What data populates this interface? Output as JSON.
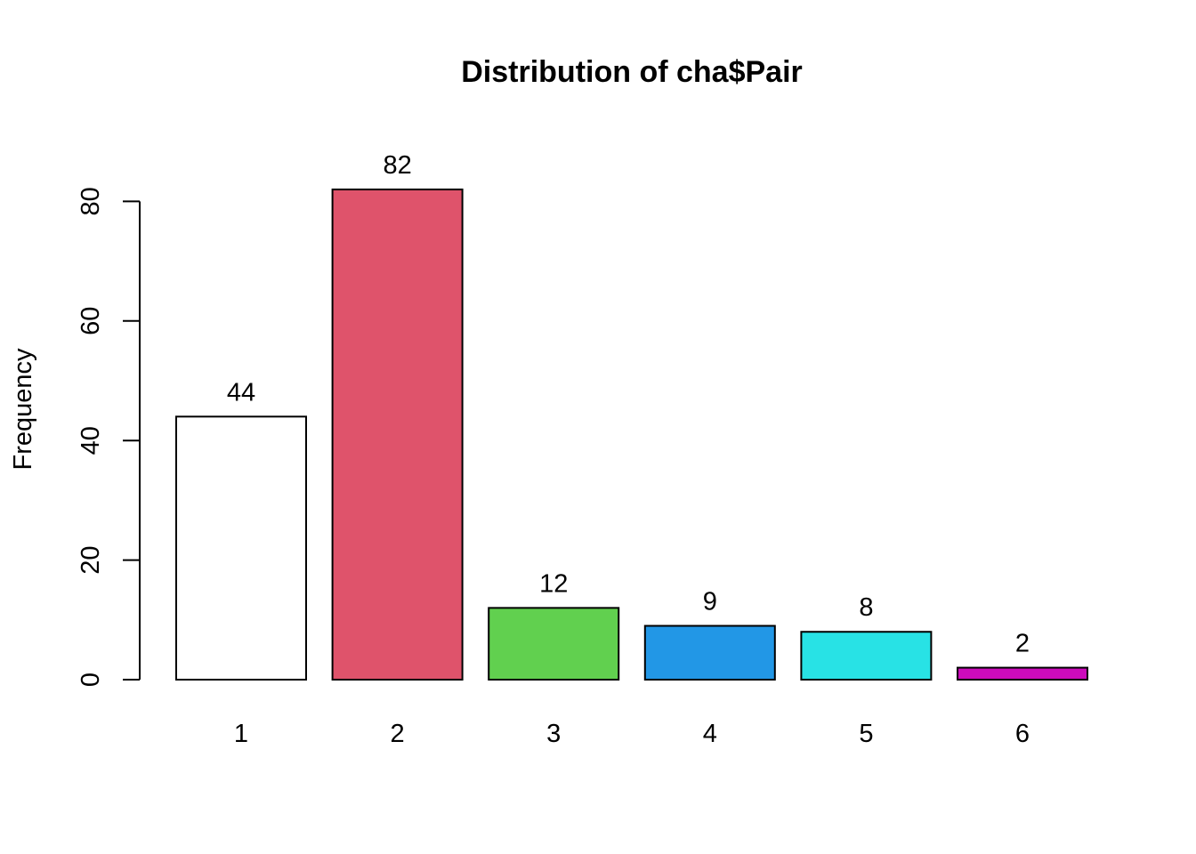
{
  "chart_data": {
    "type": "bar",
    "title": "Distribution of cha$Pair",
    "xlabel": "",
    "ylabel": "Frequency",
    "categories": [
      "1",
      "2",
      "3",
      "4",
      "5",
      "6"
    ],
    "values": [
      44,
      82,
      12,
      9,
      8,
      2
    ],
    "data_labels": [
      "44",
      "82",
      "12",
      "9",
      "8",
      "2"
    ],
    "colors": [
      "#FFFFFF",
      "#DF536B",
      "#61D04F",
      "#2297E6",
      "#28E2E5",
      "#CD0BBC"
    ],
    "yticks": [
      0,
      20,
      40,
      60,
      80
    ],
    "ytick_labels": [
      "0",
      "20",
      "40",
      "60",
      "80"
    ],
    "ylim": [
      0,
      82
    ],
    "grid": false,
    "legend": "none"
  }
}
